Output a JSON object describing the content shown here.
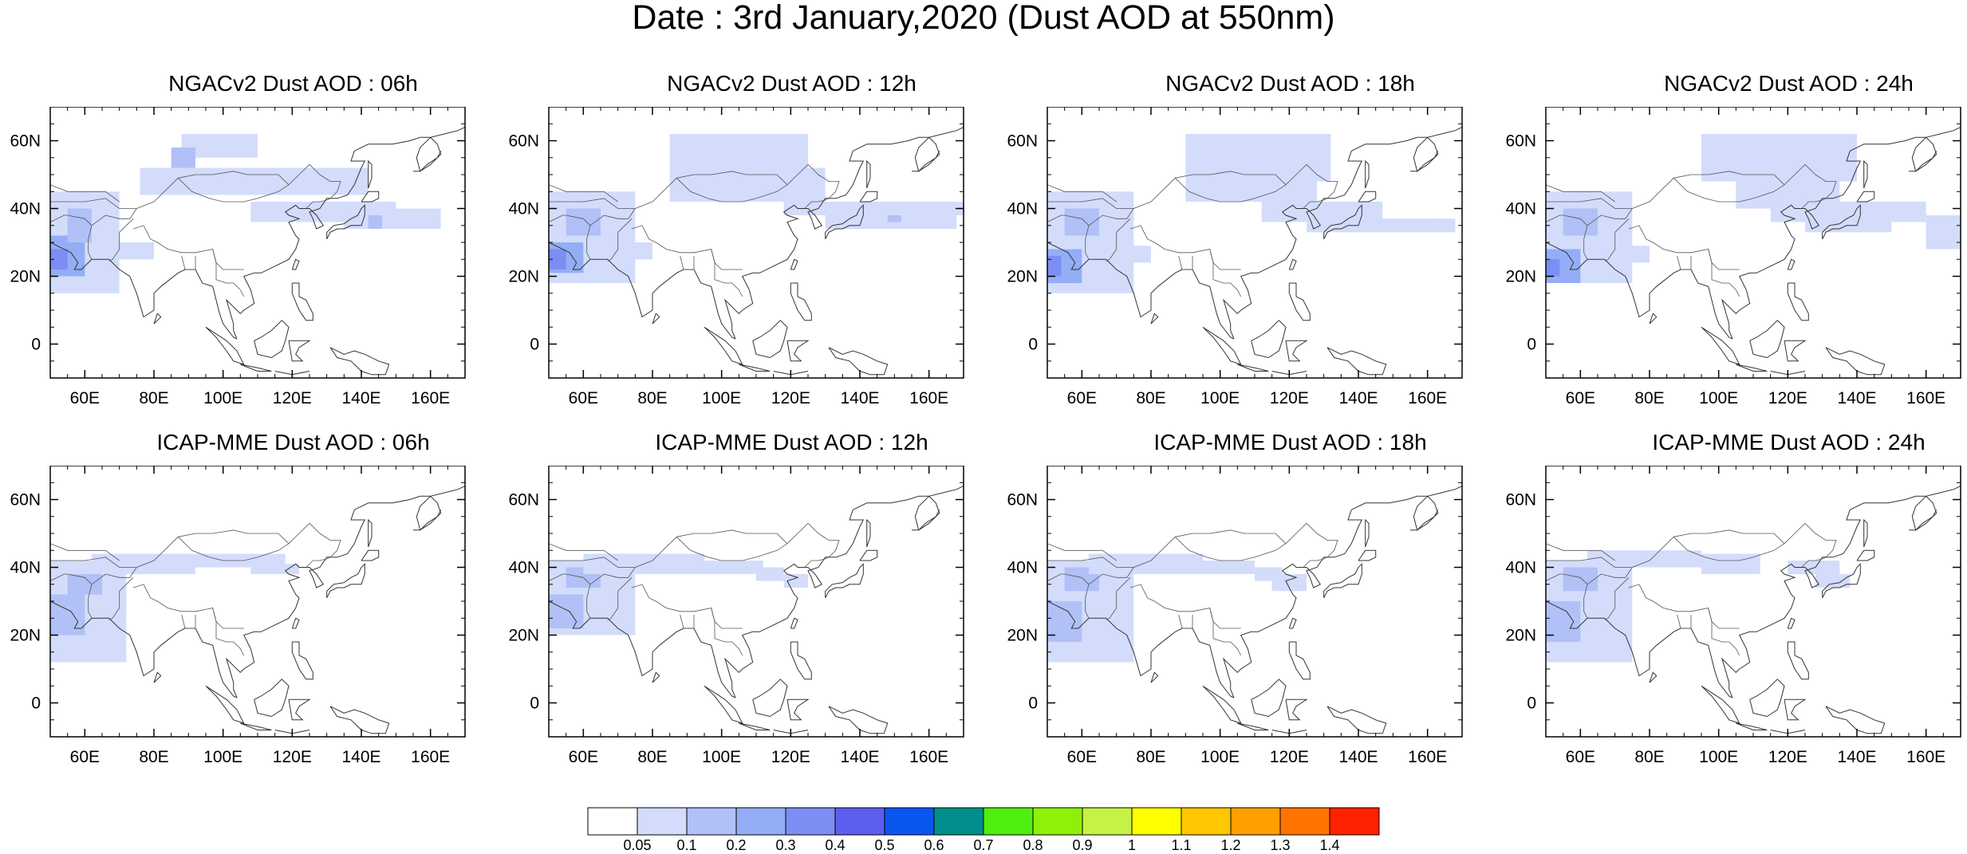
{
  "title": "Date : 3rd January,2020 (Dust AOD at 550nm)",
  "panels": [
    {
      "title": "NGACv2 Dust AOD : 06h",
      "model": "NGACv2",
      "hour": "06h"
    },
    {
      "title": "NGACv2 Dust AOD : 12h",
      "model": "NGACv2",
      "hour": "12h"
    },
    {
      "title": "NGACv2 Dust AOD : 18h",
      "model": "NGACv2",
      "hour": "18h"
    },
    {
      "title": "NGACv2 Dust AOD : 24h",
      "model": "NGACv2",
      "hour": "24h"
    },
    {
      "title": "ICAP-MME Dust AOD : 06h",
      "model": "ICAP-MME",
      "hour": "06h"
    },
    {
      "title": "ICAP-MME Dust AOD : 12h",
      "model": "ICAP-MME",
      "hour": "12h"
    },
    {
      "title": "ICAP-MME Dust AOD : 18h",
      "model": "ICAP-MME",
      "hour": "18h"
    },
    {
      "title": "ICAP-MME Dust AOD : 24h",
      "model": "ICAP-MME",
      "hour": "24h"
    }
  ],
  "axes": {
    "lon_labels": [
      "60E",
      "80E",
      "100E",
      "120E",
      "140E",
      "160E"
    ],
    "lon_values": [
      60,
      80,
      100,
      120,
      140,
      160
    ],
    "lat_labels": [
      "60N",
      "40N",
      "20N",
      "0"
    ],
    "lat_values": [
      60,
      40,
      20,
      0
    ],
    "lon_range": [
      50,
      170
    ],
    "lat_range": [
      -10,
      70
    ]
  },
  "colorbar": {
    "labels": [
      "0.05",
      "0.1",
      "0.2",
      "0.3",
      "0.4",
      "0.5",
      "0.6",
      "0.7",
      "0.8",
      "0.9",
      "1",
      "1.1",
      "1.2",
      "1.3",
      "1.4"
    ],
    "colors": [
      "#ffffff",
      "#d3dcfb",
      "#b1c1f7",
      "#93aef6",
      "#7c8ef3",
      "#5d5df0",
      "#0a57f0",
      "#008f8c",
      "#4ff00f",
      "#8ff00a",
      "#c6f245",
      "#ffff00",
      "#ffc700",
      "#ff9f00",
      "#ff7400",
      "#ff2200"
    ]
  }
}
